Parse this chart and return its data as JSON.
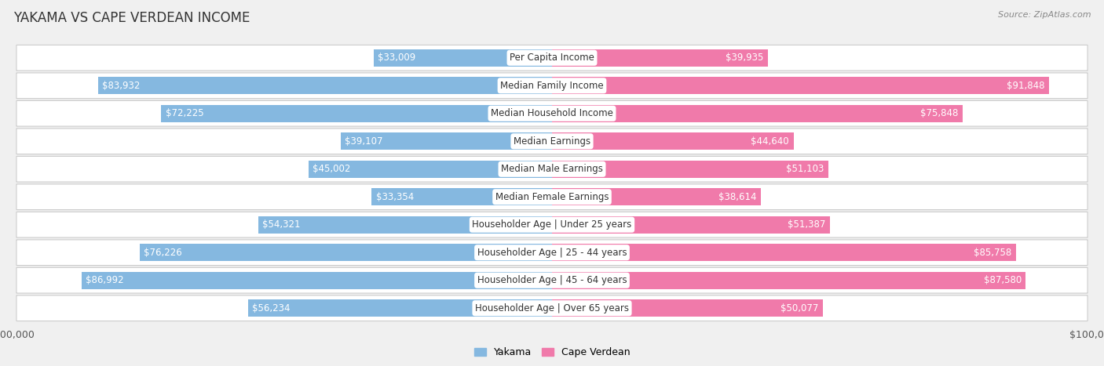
{
  "title": "YAKAMA VS CAPE VERDEAN INCOME",
  "source": "Source: ZipAtlas.com",
  "categories": [
    "Per Capita Income",
    "Median Family Income",
    "Median Household Income",
    "Median Earnings",
    "Median Male Earnings",
    "Median Female Earnings",
    "Householder Age | Under 25 years",
    "Householder Age | 25 - 44 years",
    "Householder Age | 45 - 64 years",
    "Householder Age | Over 65 years"
  ],
  "yakama_values": [
    33009,
    83932,
    72225,
    39107,
    45002,
    33354,
    54321,
    76226,
    86992,
    56234
  ],
  "capeverdean_values": [
    39935,
    91848,
    75848,
    44640,
    51103,
    38614,
    51387,
    85758,
    87580,
    50077
  ],
  "yakama_labels": [
    "$33,009",
    "$83,932",
    "$72,225",
    "$39,107",
    "$45,002",
    "$33,354",
    "$54,321",
    "$76,226",
    "$86,992",
    "$56,234"
  ],
  "capeverdean_labels": [
    "$39,935",
    "$91,848",
    "$75,848",
    "$44,640",
    "$51,103",
    "$38,614",
    "$51,387",
    "$85,758",
    "$87,580",
    "$50,077"
  ],
  "yakama_color": "#85b8e0",
  "capeverdean_color": "#f07aaa",
  "max_value": 100000,
  "bg_color": "#f0f0f0",
  "row_bg_color": "#ffffff",
  "bar_height": 0.62,
  "title_fontsize": 12,
  "label_fontsize": 8.5,
  "category_fontsize": 8.5,
  "axis_label_fontsize": 9,
  "inside_label_threshold": 22000,
  "legend_yakama": "Yakama",
  "legend_cv": "Cape Verdean"
}
